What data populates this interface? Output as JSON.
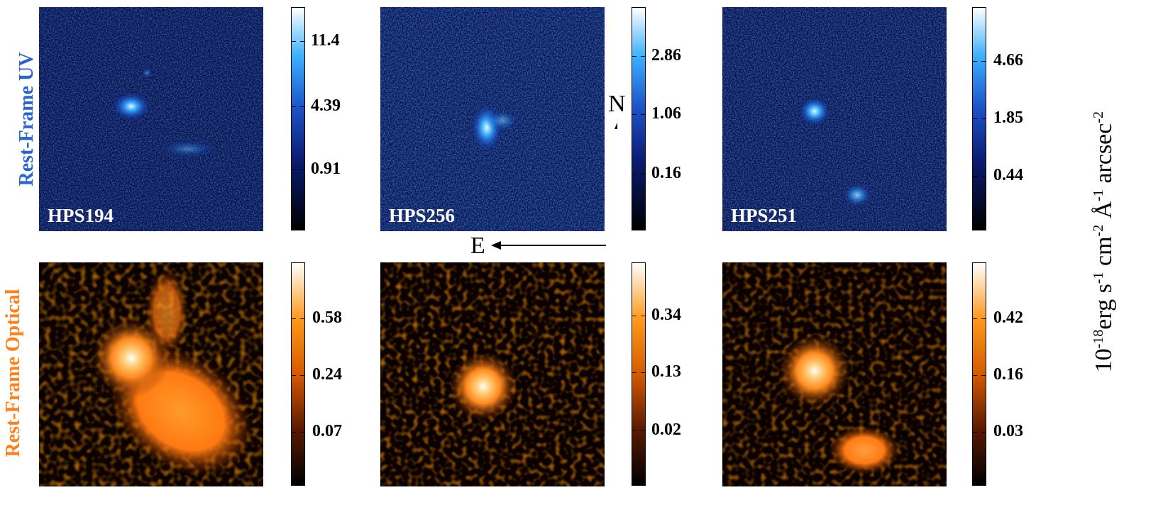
{
  "row_labels": {
    "uv": "Rest-Frame UV",
    "optical": "Rest-Frame Optical"
  },
  "objects": [
    "HPS194",
    "HPS256",
    "HPS251"
  ],
  "colorbars": {
    "uv": [
      [
        "11.4",
        "4.39",
        "0.91"
      ],
      [
        "2.86",
        "1.06",
        "0.16"
      ],
      [
        "4.66",
        "1.85",
        "0.44"
      ]
    ],
    "optical": [
      [
        "0.58",
        "0.24",
        "0.07"
      ],
      [
        "0.34",
        "0.13",
        "0.02"
      ],
      [
        "0.42",
        "0.16",
        "0.03"
      ]
    ]
  },
  "compass": {
    "north": "N",
    "east": "E"
  },
  "units": {
    "base": "10",
    "exp1": "-18",
    "t1": "erg s",
    "exp2": "-1",
    "t2": " cm",
    "exp3": "-2",
    "t3": " Å",
    "exp4": "-1",
    "t4": " arcsec",
    "exp5": "-2"
  },
  "colors": {
    "uv_label": "#1f5fd0",
    "optical_label": "#ff7f1a"
  }
}
